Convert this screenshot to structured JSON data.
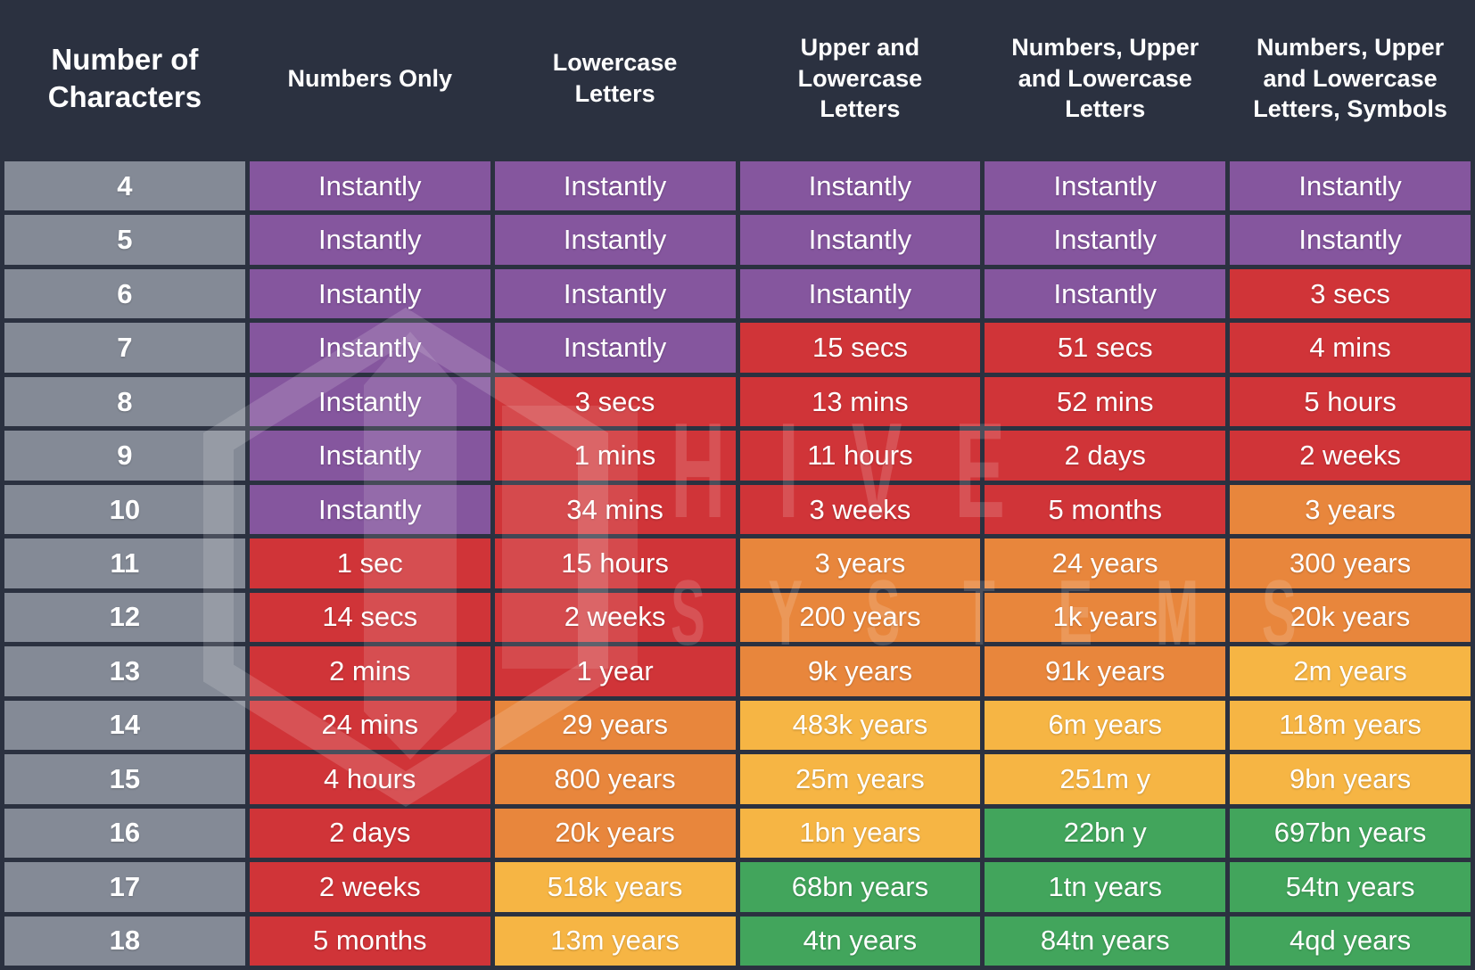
{
  "palette": {
    "background": "#2b3140",
    "grid_line": "#2b3140",
    "row_label_bg": "#848a96",
    "purple": "#85569e",
    "red": "#d03438",
    "orange": "#e8863c",
    "yellow": "#f6b544",
    "green": "#42a55c",
    "text": "#ffffff",
    "watermark": "rgba(255,255,255,0.15)"
  },
  "watermark": {
    "line1": "HIVE",
    "line2": "SYSTEMS"
  },
  "chart_data": {
    "type": "table",
    "columns": [
      "Number of Characters",
      "Numbers Only",
      "Lowercase Letters",
      "Upper and Lowercase Letters",
      "Numbers, Upper and Lowercase Letters",
      "Numbers, Upper and Lowercase Letters, Symbols"
    ],
    "rows": [
      {
        "chars": "4",
        "cells": [
          {
            "text": "Instantly",
            "color": "purple"
          },
          {
            "text": "Instantly",
            "color": "purple"
          },
          {
            "text": "Instantly",
            "color": "purple"
          },
          {
            "text": "Instantly",
            "color": "purple"
          },
          {
            "text": "Instantly",
            "color": "purple"
          }
        ]
      },
      {
        "chars": "5",
        "cells": [
          {
            "text": "Instantly",
            "color": "purple"
          },
          {
            "text": "Instantly",
            "color": "purple"
          },
          {
            "text": "Instantly",
            "color": "purple"
          },
          {
            "text": "Instantly",
            "color": "purple"
          },
          {
            "text": "Instantly",
            "color": "purple"
          }
        ]
      },
      {
        "chars": "6",
        "cells": [
          {
            "text": "Instantly",
            "color": "purple"
          },
          {
            "text": "Instantly",
            "color": "purple"
          },
          {
            "text": "Instantly",
            "color": "purple"
          },
          {
            "text": "Instantly",
            "color": "purple"
          },
          {
            "text": "3 secs",
            "color": "red"
          }
        ]
      },
      {
        "chars": "7",
        "cells": [
          {
            "text": "Instantly",
            "color": "purple"
          },
          {
            "text": "Instantly",
            "color": "purple"
          },
          {
            "text": "15 secs",
            "color": "red"
          },
          {
            "text": "51 secs",
            "color": "red"
          },
          {
            "text": "4 mins",
            "color": "red"
          }
        ]
      },
      {
        "chars": "8",
        "cells": [
          {
            "text": "Instantly",
            "color": "purple"
          },
          {
            "text": "3 secs",
            "color": "red"
          },
          {
            "text": "13 mins",
            "color": "red"
          },
          {
            "text": "52 mins",
            "color": "red"
          },
          {
            "text": "5 hours",
            "color": "red"
          }
        ]
      },
      {
        "chars": "9",
        "cells": [
          {
            "text": "Instantly",
            "color": "purple"
          },
          {
            "text": "1 mins",
            "color": "red"
          },
          {
            "text": "11 hours",
            "color": "red"
          },
          {
            "text": "2 days",
            "color": "red"
          },
          {
            "text": "2 weeks",
            "color": "red"
          }
        ]
      },
      {
        "chars": "10",
        "cells": [
          {
            "text": "Instantly",
            "color": "purple"
          },
          {
            "text": "34 mins",
            "color": "red"
          },
          {
            "text": "3 weeks",
            "color": "red"
          },
          {
            "text": "5 months",
            "color": "red"
          },
          {
            "text": "3 years",
            "color": "orange"
          }
        ]
      },
      {
        "chars": "11",
        "cells": [
          {
            "text": "1 sec",
            "color": "red"
          },
          {
            "text": "15 hours",
            "color": "red"
          },
          {
            "text": "3 years",
            "color": "orange"
          },
          {
            "text": "24 years",
            "color": "orange"
          },
          {
            "text": "300 years",
            "color": "orange"
          }
        ]
      },
      {
        "chars": "12",
        "cells": [
          {
            "text": "14 secs",
            "color": "red"
          },
          {
            "text": "2 weeks",
            "color": "red"
          },
          {
            "text": "200 years",
            "color": "orange"
          },
          {
            "text": "1k years",
            "color": "orange"
          },
          {
            "text": "20k years",
            "color": "orange"
          }
        ]
      },
      {
        "chars": "13",
        "cells": [
          {
            "text": "2 mins",
            "color": "red"
          },
          {
            "text": "1 year",
            "color": "red"
          },
          {
            "text": "9k years",
            "color": "orange"
          },
          {
            "text": "91k years",
            "color": "orange"
          },
          {
            "text": "2m years",
            "color": "yellow"
          }
        ]
      },
      {
        "chars": "14",
        "cells": [
          {
            "text": "24 mins",
            "color": "red"
          },
          {
            "text": "29 years",
            "color": "orange"
          },
          {
            "text": "483k years",
            "color": "yellow"
          },
          {
            "text": "6m years",
            "color": "yellow"
          },
          {
            "text": "118m years",
            "color": "yellow"
          }
        ]
      },
      {
        "chars": "15",
        "cells": [
          {
            "text": "4 hours",
            "color": "red"
          },
          {
            "text": "800 years",
            "color": "orange"
          },
          {
            "text": "25m years",
            "color": "yellow"
          },
          {
            "text": "251m y",
            "color": "yellow"
          },
          {
            "text": "9bn years",
            "color": "yellow"
          }
        ]
      },
      {
        "chars": "16",
        "cells": [
          {
            "text": "2 days",
            "color": "red"
          },
          {
            "text": "20k years",
            "color": "orange"
          },
          {
            "text": "1bn years",
            "color": "yellow"
          },
          {
            "text": "22bn y",
            "color": "green"
          },
          {
            "text": "697bn years",
            "color": "green"
          }
        ]
      },
      {
        "chars": "17",
        "cells": [
          {
            "text": "2 weeks",
            "color": "red"
          },
          {
            "text": "518k years",
            "color": "yellow"
          },
          {
            "text": "68bn years",
            "color": "green"
          },
          {
            "text": "1tn years",
            "color": "green"
          },
          {
            "text": "54tn years",
            "color": "green"
          }
        ]
      },
      {
        "chars": "18",
        "cells": [
          {
            "text": "5 months",
            "color": "red"
          },
          {
            "text": "13m years",
            "color": "yellow"
          },
          {
            "text": "4tn years",
            "color": "green"
          },
          {
            "text": "84tn years",
            "color": "green"
          },
          {
            "text": "4qd years",
            "color": "green"
          }
        ]
      }
    ]
  }
}
